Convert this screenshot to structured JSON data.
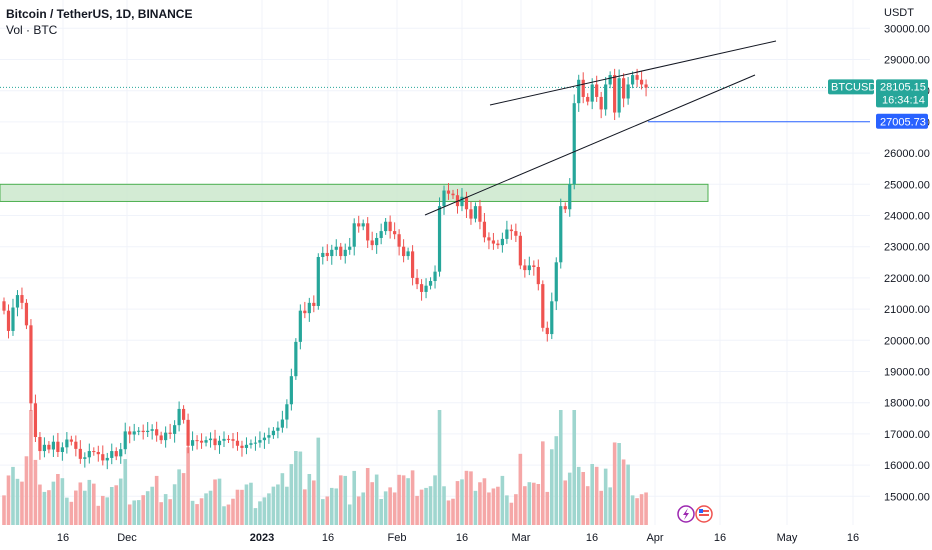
{
  "header": {
    "title": "Bitcoin / TetherUS, 1D, BINANCE",
    "volume_label": "Vol · BTC"
  },
  "price_scale": {
    "currency": "USDT",
    "ticks": [
      "30000.00",
      "29000.00",
      "28000.00",
      "27000.00",
      "26000.00",
      "25000.00",
      "24000.00",
      "23000.00",
      "22000.00",
      "21000.00",
      "20000.00",
      "19000.00",
      "18000.00",
      "17000.00",
      "16000.00",
      "15000.00"
    ]
  },
  "time_scale": {
    "labels": [
      "16",
      "Dec",
      "2023",
      "16",
      "Feb",
      "16",
      "Mar",
      "16",
      "Apr",
      "16",
      "May",
      "16"
    ]
  },
  "price_tags": {
    "symbol": "BTCUSDT",
    "last_price": "28105.15",
    "countdown": "16:34:14",
    "level_price": "27005.73"
  },
  "colors": {
    "up": "#26a69a",
    "down": "#ef5350",
    "vol_up": "#9fd6cf",
    "vol_down": "#f5a7a7",
    "zone_fill": "#c8e6c9",
    "zone_border": "#4caf50",
    "level_line": "#2962ff",
    "grid": "#f0f3fa"
  },
  "chart_data": {
    "type": "candlestick",
    "symbol": "BTCUSDT",
    "interval": "1D",
    "exchange": "BINANCE",
    "ylim": [
      14500,
      30500
    ],
    "closes": [
      20950,
      20300,
      21050,
      21450,
      21200,
      20480,
      17980,
      16900,
      16450,
      16650,
      16500,
      16750,
      16420,
      16570,
      16820,
      16750,
      16520,
      16200,
      16250,
      16450,
      16420,
      16350,
      16150,
      16230,
      16450,
      16280,
      16510,
      17080,
      16980,
      17080,
      17100,
      17060,
      17100,
      17150,
      16950,
      16800,
      17040,
      17000,
      17280,
      17800,
      17450,
      16620,
      16800,
      16780,
      16720,
      16800,
      16850,
      16640,
      16780,
      16840,
      16830,
      16780,
      16620,
      16550,
      16650,
      16700,
      16720,
      16800,
      16880,
      16960,
      17100,
      17200,
      17460,
      17950,
      18850,
      19950,
      20950,
      20870,
      21200,
      21100,
      22670,
      22800,
      22700,
      22900,
      23000,
      22700,
      22900,
      23000,
      23750,
      23650,
      23750,
      23200,
      23050,
      23280,
      23500,
      23800,
      23500,
      23400,
      23000,
      22700,
      22850,
      22000,
      21800,
      21550,
      21750,
      21900,
      22200,
      24300,
      24800,
      24700,
      24650,
      24300,
      24600,
      24200,
      23900,
      24300,
      23800,
      23300,
      23200,
      23100,
      23050,
      23250,
      23550,
      23500,
      23350,
      22400,
      22250,
      22400,
      22350,
      21800,
      20400,
      20200,
      21250,
      22500,
      24300,
      24200,
      25000,
      27600,
      28350,
      27800,
      27650,
      28200,
      27800,
      27400,
      28200,
      28500,
      27300,
      28400,
      27750,
      28200,
      28500,
      28350,
      28200,
      28100
    ],
    "highlight_zone": [
      24450,
      25000
    ],
    "horizontal_level": 27005.73,
    "last_price": 28105.15
  }
}
